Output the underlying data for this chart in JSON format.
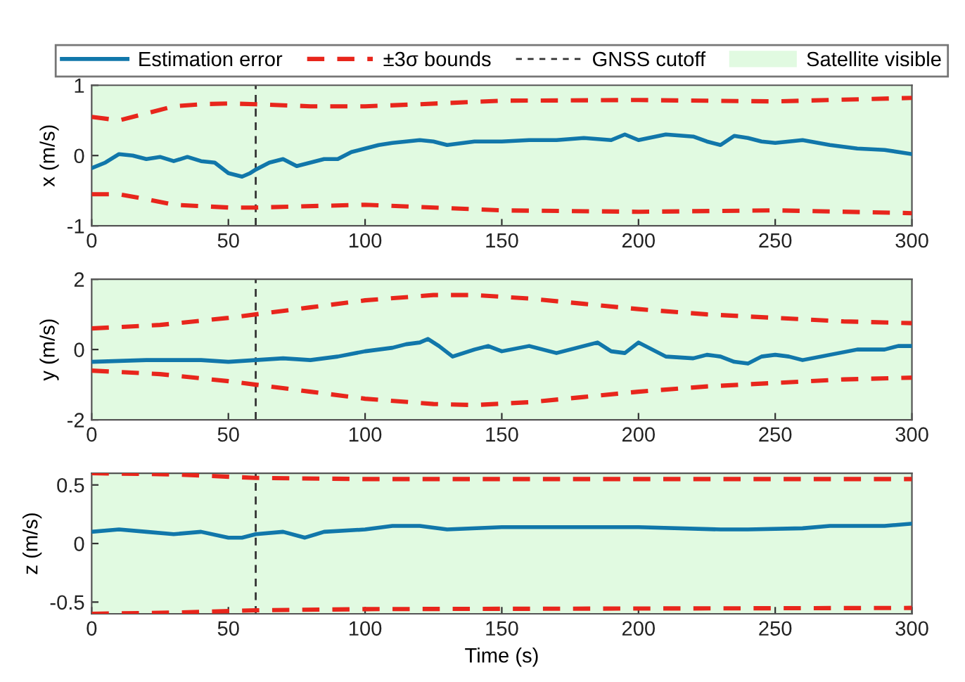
{
  "chart_data": [
    {
      "type": "line",
      "ylabel": "x (m/s)",
      "xlim": [
        0,
        300
      ],
      "xticks": [
        0,
        50,
        100,
        150,
        200,
        250,
        300
      ],
      "ylim": [
        -1,
        1
      ],
      "yticks": [
        -1,
        0,
        1
      ],
      "grid": false,
      "legend": "top",
      "bands": [
        {
          "axis": "x",
          "from": 0,
          "to": 300,
          "label": "Satellite visible",
          "color": "#e1fae1"
        }
      ],
      "ref_lines": [
        {
          "axis": "x",
          "value": 60,
          "label": "GNSS cutoff",
          "color": "#333333",
          "line_style": "dashed"
        }
      ],
      "series": [
        {
          "name": "Estimation error",
          "color": "#1177aa",
          "line_style": "solid",
          "x": [
            0,
            5,
            10,
            15,
            20,
            25,
            30,
            35,
            40,
            45,
            50,
            55,
            58,
            60,
            65,
            70,
            75,
            80,
            85,
            90,
            95,
            100,
            105,
            110,
            120,
            125,
            130,
            140,
            150,
            160,
            170,
            180,
            190,
            195,
            200,
            210,
            220,
            225,
            230,
            235,
            240,
            245,
            250,
            255,
            260,
            270,
            280,
            290,
            300
          ],
          "values": [
            -0.18,
            -0.1,
            0.02,
            0.0,
            -0.05,
            -0.02,
            -0.08,
            -0.02,
            -0.08,
            -0.1,
            -0.25,
            -0.3,
            -0.25,
            -0.2,
            -0.1,
            -0.05,
            -0.15,
            -0.1,
            -0.05,
            -0.05,
            0.05,
            0.1,
            0.15,
            0.18,
            0.22,
            0.2,
            0.15,
            0.2,
            0.2,
            0.22,
            0.22,
            0.25,
            0.22,
            0.3,
            0.22,
            0.3,
            0.27,
            0.2,
            0.15,
            0.28,
            0.25,
            0.2,
            0.18,
            0.2,
            0.22,
            0.15,
            0.1,
            0.08,
            0.02
          ]
        },
        {
          "name": "±3σ bounds",
          "color": "#e8261c",
          "line_style": "dashed",
          "x": [
            0,
            10,
            20,
            30,
            40,
            50,
            60,
            80,
            100,
            120,
            150,
            200,
            250,
            300
          ],
          "values": [
            0.55,
            0.5,
            0.6,
            0.7,
            0.73,
            0.74,
            0.73,
            0.7,
            0.7,
            0.73,
            0.78,
            0.79,
            0.77,
            0.82
          ]
        },
        {
          "color": "#e8261c",
          "line_style": "dashed",
          "x": [
            0,
            10,
            20,
            30,
            50,
            60,
            100,
            150,
            200,
            250,
            300
          ],
          "values": [
            -0.55,
            -0.55,
            -0.62,
            -0.7,
            -0.74,
            -0.74,
            -0.7,
            -0.78,
            -0.8,
            -0.78,
            -0.82
          ]
        }
      ]
    },
    {
      "type": "line",
      "ylabel": "y (m/s)",
      "xlim": [
        0,
        300
      ],
      "xticks": [
        0,
        50,
        100,
        150,
        200,
        250,
        300
      ],
      "ylim": [
        -2,
        2
      ],
      "yticks": [
        -2,
        0,
        2
      ],
      "grid": false,
      "bands": [
        {
          "axis": "x",
          "from": 0,
          "to": 300,
          "color": "#e1fae1"
        }
      ],
      "ref_lines": [
        {
          "axis": "x",
          "value": 60,
          "color": "#333333",
          "line_style": "dashed"
        }
      ],
      "series": [
        {
          "color": "#1177aa",
          "line_style": "solid",
          "x": [
            0,
            20,
            40,
            50,
            60,
            70,
            80,
            90,
            100,
            110,
            115,
            120,
            123,
            127,
            132,
            140,
            145,
            150,
            160,
            165,
            170,
            180,
            185,
            190,
            195,
            200,
            205,
            210,
            220,
            225,
            230,
            235,
            240,
            245,
            250,
            255,
            260,
            270,
            280,
            290,
            295,
            300
          ],
          "values": [
            -0.35,
            -0.3,
            -0.3,
            -0.35,
            -0.3,
            -0.25,
            -0.3,
            -0.2,
            -0.05,
            0.05,
            0.15,
            0.2,
            0.3,
            0.1,
            -0.2,
            0.0,
            0.1,
            -0.05,
            0.1,
            0.0,
            -0.1,
            0.1,
            0.2,
            -0.05,
            -0.1,
            0.2,
            0.0,
            -0.2,
            -0.25,
            -0.15,
            -0.2,
            -0.35,
            -0.4,
            -0.2,
            -0.15,
            -0.2,
            -0.3,
            -0.15,
            0.0,
            0.0,
            0.1,
            0.1
          ]
        },
        {
          "color": "#e8261c",
          "line_style": "dashed",
          "x": [
            0,
            25,
            50,
            60,
            80,
            100,
            125,
            140,
            160,
            180,
            200,
            225,
            250,
            275,
            300
          ],
          "values": [
            0.6,
            0.7,
            0.9,
            1.0,
            1.2,
            1.4,
            1.55,
            1.55,
            1.45,
            1.3,
            1.15,
            1.0,
            0.9,
            0.8,
            0.75
          ]
        },
        {
          "color": "#e8261c",
          "line_style": "dashed",
          "x": [
            0,
            25,
            50,
            60,
            80,
            100,
            125,
            140,
            160,
            180,
            200,
            225,
            250,
            275,
            300
          ],
          "values": [
            -0.6,
            -0.7,
            -0.9,
            -1.0,
            -1.2,
            -1.4,
            -1.55,
            -1.58,
            -1.5,
            -1.35,
            -1.2,
            -1.05,
            -0.95,
            -0.85,
            -0.8
          ]
        }
      ]
    },
    {
      "type": "line",
      "ylabel": "z (m/s)",
      "xlabel": "Time (s)",
      "xlim": [
        0,
        300
      ],
      "xticks": [
        0,
        50,
        100,
        150,
        200,
        250,
        300
      ],
      "ylim": [
        -0.6,
        0.6
      ],
      "yticks": [
        -0.5,
        0,
        0.5
      ],
      "grid": false,
      "bands": [
        {
          "axis": "x",
          "from": 0,
          "to": 300,
          "color": "#e1fae1"
        }
      ],
      "ref_lines": [
        {
          "axis": "x",
          "value": 60,
          "color": "#333333",
          "line_style": "dashed"
        }
      ],
      "series": [
        {
          "color": "#1177aa",
          "line_style": "solid",
          "x": [
            0,
            10,
            20,
            30,
            40,
            50,
            55,
            60,
            70,
            78,
            85,
            100,
            110,
            120,
            130,
            150,
            200,
            230,
            240,
            260,
            270,
            290,
            300
          ],
          "values": [
            0.1,
            0.12,
            0.1,
            0.08,
            0.1,
            0.05,
            0.05,
            0.08,
            0.1,
            0.05,
            0.1,
            0.12,
            0.15,
            0.15,
            0.12,
            0.14,
            0.14,
            0.12,
            0.12,
            0.13,
            0.15,
            0.15,
            0.17
          ]
        },
        {
          "color": "#e8261c",
          "line_style": "dashed",
          "x": [
            0,
            30,
            60,
            100,
            300
          ],
          "values": [
            0.6,
            0.59,
            0.56,
            0.55,
            0.55
          ]
        },
        {
          "color": "#e8261c",
          "line_style": "dashed",
          "x": [
            0,
            30,
            60,
            100,
            300
          ],
          "values": [
            -0.6,
            -0.59,
            -0.57,
            -0.56,
            -0.55
          ]
        }
      ]
    }
  ]
}
